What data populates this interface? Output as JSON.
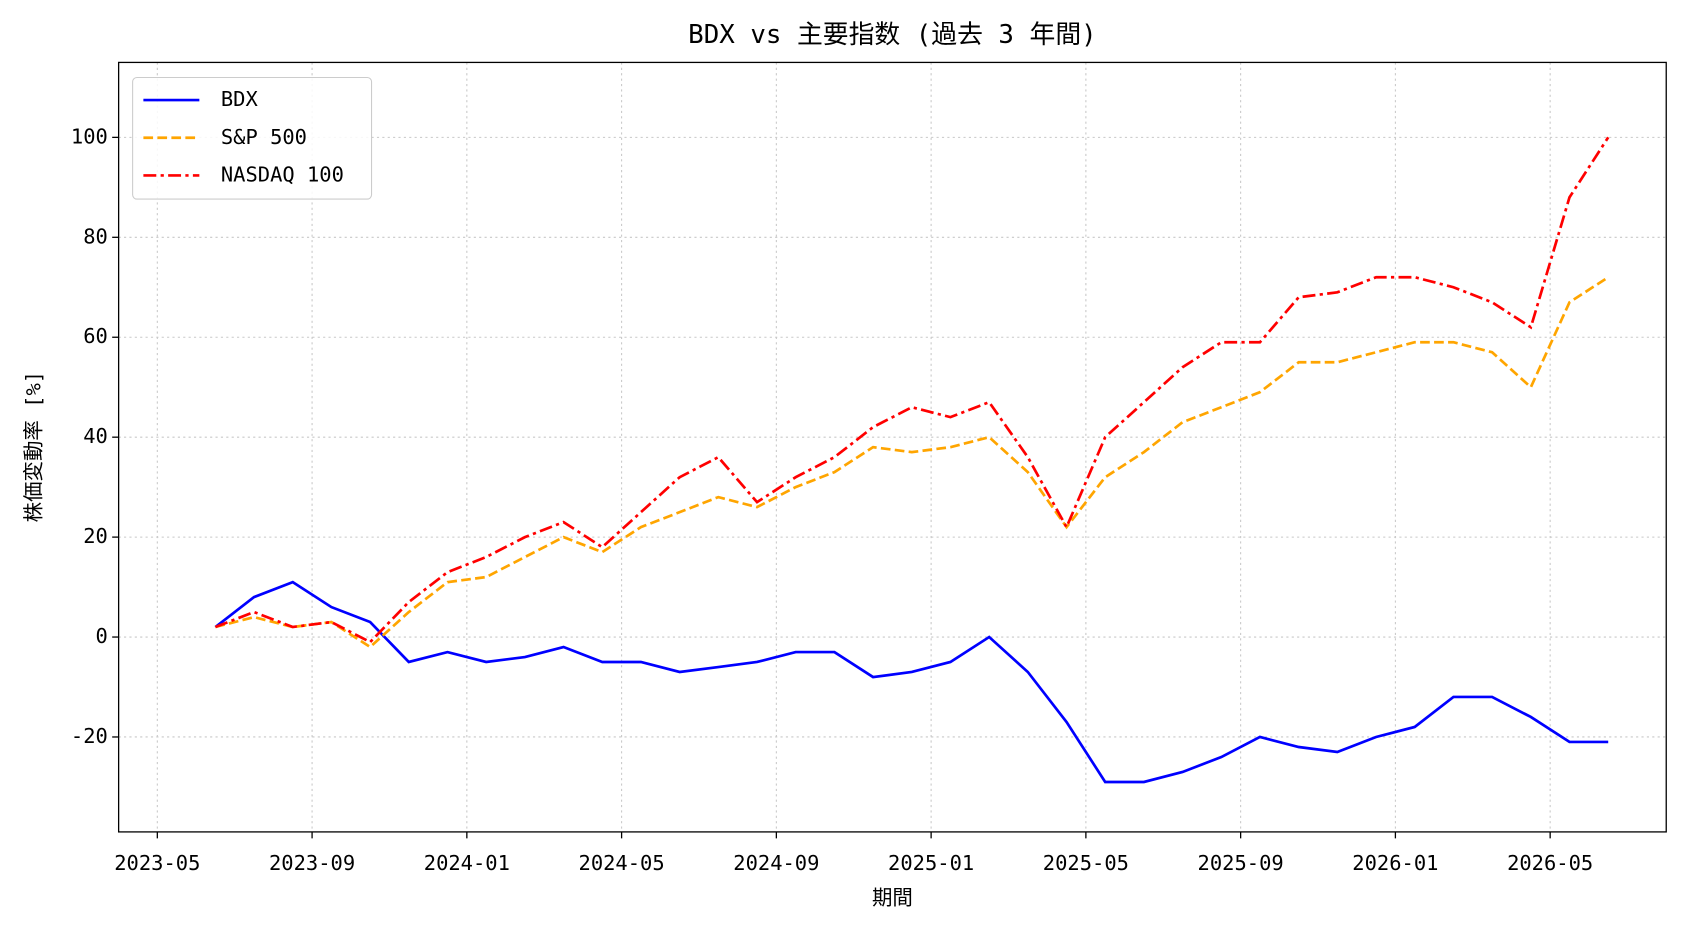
{
  "chart_data": {
    "type": "line",
    "title": "BDX vs 主要指数 (過去 3 年間)",
    "x_label": "期間",
    "y_label": "株価変動率 [%]",
    "x": [
      "2023-06",
      "2023-07",
      "2023-08",
      "2023-09",
      "2023-10",
      "2023-11",
      "2023-12",
      "2024-01",
      "2024-02",
      "2024-03",
      "2024-04",
      "2024-05",
      "2024-06",
      "2024-07",
      "2024-08",
      "2024-09",
      "2024-10",
      "2024-11",
      "2024-12",
      "2025-01",
      "2025-02",
      "2025-03",
      "2025-04",
      "2025-05",
      "2025-06",
      "2025-07",
      "2025-08",
      "2025-09",
      "2025-10",
      "2025-11",
      "2025-12",
      "2026-01",
      "2026-02",
      "2026-03",
      "2026-04",
      "2026-05",
      "2026-06"
    ],
    "series": [
      {
        "name": "BDX",
        "color": "#0000ff",
        "linestyle": "solid",
        "values": [
          2,
          8,
          11,
          6,
          3,
          -5,
          -3,
          -5,
          -4,
          -2,
          -5,
          -5,
          -7,
          -6,
          -5,
          -3,
          -3,
          -8,
          -7,
          -5,
          0,
          -7,
          -17,
          -29,
          -29,
          -27,
          -24,
          -20,
          -22,
          -23,
          -20,
          -18,
          -12,
          -12,
          -16,
          -21,
          -21
        ]
      },
      {
        "name": "S&P 500",
        "color": "#ffa500",
        "linestyle": "dashed",
        "values": [
          2,
          4,
          2,
          3,
          -2,
          5,
          11,
          12,
          16,
          20,
          17,
          22,
          25,
          28,
          26,
          30,
          33,
          38,
          37,
          38,
          40,
          33,
          22,
          32,
          37,
          43,
          46,
          49,
          55,
          55,
          57,
          59,
          59,
          57,
          50,
          67,
          72
        ]
      },
      {
        "name": "NASDAQ 100",
        "color": "#ff0000",
        "linestyle": "dashdot",
        "values": [
          2,
          5,
          2,
          3,
          -1,
          7,
          13,
          16,
          20,
          23,
          18,
          25,
          32,
          36,
          27,
          32,
          36,
          42,
          46,
          44,
          47,
          36,
          22,
          40,
          47,
          54,
          59,
          59,
          68,
          69,
          72,
          72,
          70,
          67,
          62,
          88,
          100
        ]
      }
    ],
    "xlim": [
      "2023-04",
      "2026-08"
    ],
    "xticks": [
      "2023-05",
      "2023-09",
      "2024-01",
      "2024-05",
      "2024-09",
      "2025-01",
      "2025-05",
      "2025-09",
      "2026-01",
      "2026-05"
    ],
    "ylim": [
      -39,
      115
    ],
    "yticks": [
      -20,
      0,
      20,
      40,
      60,
      80,
      100
    ],
    "grid": true,
    "legend": "upper left"
  }
}
